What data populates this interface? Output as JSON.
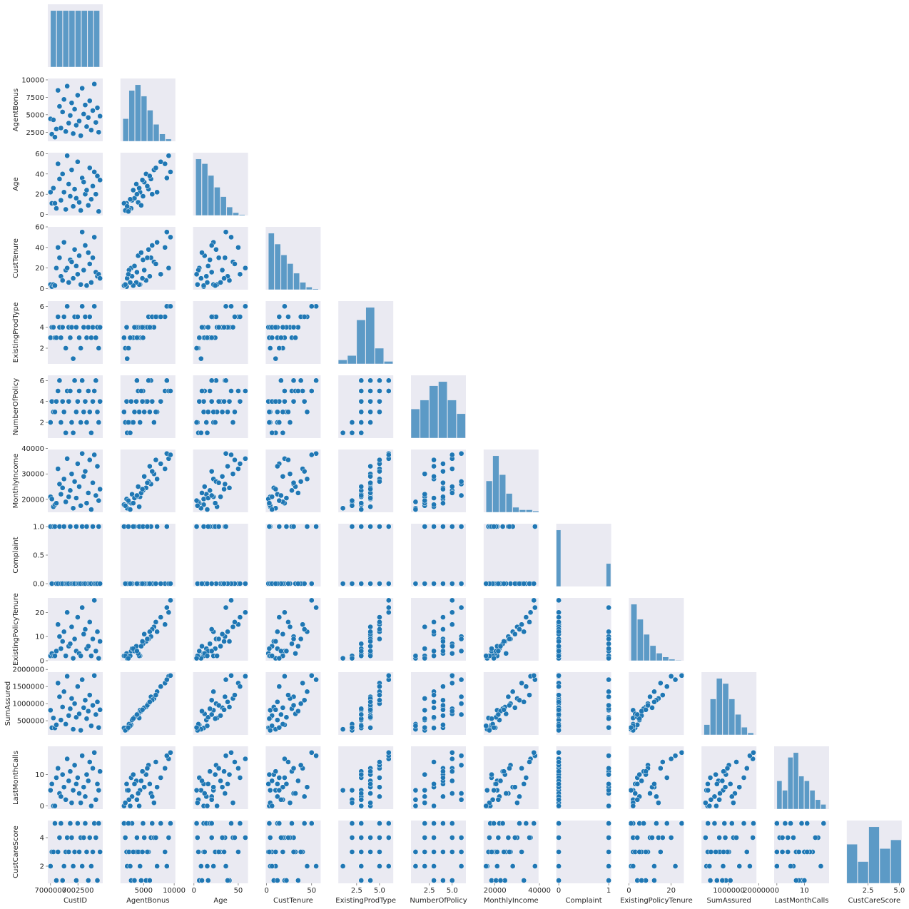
{
  "chart_data": {
    "type": "pairplot",
    "color": "#1f77b4",
    "background": "#eaeaf2",
    "variables": [
      {
        "name": "CustID",
        "lim": [
          6999750,
          7004770
        ],
        "xticks": [
          7000000,
          7002500
        ],
        "yticks": [],
        "bins": [
          7000000,
          7000565,
          7001130,
          7001695,
          7002260,
          7002825,
          7003390,
          7003955,
          7004520
        ],
        "counts": [
          565,
          565,
          565,
          565,
          565,
          565,
          565,
          565
        ]
      },
      {
        "name": "AgentBonus",
        "lim": [
          1200,
          10200
        ],
        "xticks": [
          5000,
          10000
        ],
        "yticks": [
          2500,
          5000,
          7500,
          10000
        ],
        "bins": [
          1600,
          2600,
          3600,
          4600,
          5600,
          6600,
          7600,
          8600,
          9600
        ],
        "counts": [
          400,
          900,
          1000,
          800,
          550,
          300,
          130,
          40
        ]
      },
      {
        "name": "Age",
        "lim": [
          -1,
          61
        ],
        "xticks": [
          0,
          50
        ],
        "yticks": [
          0,
          20,
          40,
          60
        ],
        "bins": [
          2,
          9,
          16,
          23,
          30,
          37,
          44,
          51,
          58
        ],
        "counts": [
          1200,
          1100,
          850,
          600,
          400,
          180,
          60,
          20
        ]
      },
      {
        "name": "CustTenure",
        "lim": [
          -1,
          60
        ],
        "xticks": [
          0,
          50
        ],
        "yticks": [
          0,
          20,
          40,
          60
        ],
        "bins": [
          2,
          9,
          16,
          23,
          30,
          37,
          44,
          51,
          58
        ],
        "counts": [
          1300,
          1050,
          800,
          600,
          380,
          170,
          60,
          20
        ]
      },
      {
        "name": "ExistingProdType",
        "lim": [
          0.5,
          6.5
        ],
        "xticks": [
          2.5,
          {
            "value": 5,
            "label": "5.0"
          }
        ],
        "yticks": [
          2,
          4,
          6
        ],
        "bins": [
          0.5,
          1.5,
          2.5,
          3.5,
          4.5,
          5.5,
          6.5
        ],
        "counts": [
          190,
          400,
          2100,
          2700,
          750,
          120
        ]
      },
      {
        "name": "NumberOfPolicy",
        "lim": [
          0.5,
          6.5
        ],
        "xticks": [
          2.5,
          {
            "value": 5,
            "label": "5.0"
          }
        ],
        "yticks": [
          2,
          4,
          6
        ],
        "bins": [
          0.5,
          1.5,
          2.5,
          3.5,
          4.5,
          5.5,
          6.5
        ],
        "counts": [
          490,
          640,
          880,
          950,
          640,
          410
        ]
      },
      {
        "name": "MonthlyIncome",
        "lim": [
          14900,
          39600
        ],
        "xticks": [
          20000,
          40000
        ],
        "yticks": [
          20000,
          30000,
          40000
        ],
        "bins": [
          16000,
          19000,
          22000,
          25000,
          28000,
          31000,
          34000,
          37000,
          40000
        ],
        "counts": [
          500,
          900,
          600,
          300,
          80,
          40,
          40,
          20
        ]
      },
      {
        "name": "Complaint",
        "lim": [
          -0.05,
          1.05
        ],
        "xticks": [
          0,
          1
        ],
        "yticks": [
          {
            "value": 0,
            "label": "0.0"
          },
          {
            "value": 0.5,
            "label": "0.5"
          },
          {
            "value": 1,
            "label": "1.0"
          }
        ],
        "bins": [
          -0.05,
          0.05,
          0.95,
          1.05
        ],
        "counts": [
          3200,
          0,
          1300
        ]
      },
      {
        "name": "ExistingPolicyTenure",
        "lim": [
          0,
          26
        ],
        "xticks": [
          0,
          20
        ],
        "yticks": [
          0,
          10,
          20
        ],
        "bins": [
          1,
          4,
          7,
          10,
          13,
          16,
          19,
          22,
          25
        ],
        "counts": [
          1500,
          1100,
          700,
          400,
          200,
          100,
          40,
          15
        ]
      },
      {
        "name": "SumAssured",
        "lim": [
          85000,
          1921000
        ],
        "xticks": [
          1000000,
          2000000
        ],
        "yticks": [
          500000,
          1000000,
          1500000,
          2000000
        ],
        "bins": [
          168000,
          376000,
          585000,
          794000,
          1003000,
          1212000,
          1421000,
          1630000,
          1839000
        ],
        "counts": [
          200,
          700,
          1100,
          1000,
          700,
          400,
          150,
          40
        ]
      },
      {
        "name": "LastMonthCalls",
        "lim": [
          -1,
          19
        ],
        "xticks": [
          0,
          10
        ],
        "yticks": [
          0,
          10
        ],
        "bins": [
          0,
          2,
          4,
          6,
          8,
          10,
          12,
          14,
          16,
          18
        ],
        "counts": [
          600,
          400,
          1100,
          1200,
          700,
          600,
          400,
          200,
          100
        ]
      },
      {
        "name": "CustCareScore",
        "lim": [
          0.8,
          5.2
        ],
        "xticks": [
          2.5,
          {
            "value": 5,
            "label": "5.0"
          }
        ],
        "yticks": [
          2,
          4
        ],
        "bins": [
          0.8,
          1.68,
          2.56,
          3.44,
          4.32,
          5.2
        ],
        "counts": [
          900,
          500,
          1300,
          800,
          1000
        ]
      }
    ],
    "records": [
      [
        7000000,
        4409,
        22,
        4,
        3,
        2,
        20993,
        1,
        2,
        806761,
        5,
        2
      ],
      [
        7000120,
        2214,
        11,
        2,
        4,
        4,
        20130,
        0,
        3,
        294502,
        7,
        3
      ],
      [
        7000260,
        4273,
        26,
        4,
        4,
        3,
        17090,
        1,
        2,
        578976,
        0,
        3
      ],
      [
        7000400,
        1791,
        11,
        3,
        3,
        3,
        17909,
        1,
        2,
        287803,
        0,
        5
      ],
      [
        7000530,
        2955,
        6,
        20,
        3,
        4,
        18468,
        0,
        4,
        379226,
        9,
        1
      ],
      [
        7000680,
        8500,
        50,
        40,
        5,
        5,
        32000,
        0,
        15,
        1600000,
        12,
        3
      ],
      [
        7000820,
        6200,
        35,
        30,
        4,
        6,
        26000,
        1,
        10,
        1200000,
        4,
        4
      ],
      [
        7000950,
        3100,
        14,
        12,
        3,
        2,
        22000,
        0,
        5,
        520000,
        3,
        5
      ],
      [
        7001100,
        5400,
        40,
        8,
        4,
        4,
        24500,
        0,
        8,
        900000,
        10,
        1
      ],
      [
        7001230,
        7200,
        22,
        45,
        5,
        3,
        28000,
        1,
        12,
        1350000,
        6,
        2
      ],
      [
        7001390,
        2600,
        5,
        18,
        2,
        1,
        19000,
        0,
        2,
        400000,
        2,
        3
      ],
      [
        7001520,
        9100,
        58,
        20,
        6,
        5,
        36000,
        0,
        20,
        1800000,
        15,
        4
      ],
      [
        7001660,
        3800,
        30,
        6,
        4,
        4,
        21000,
        0,
        6,
        650000,
        8,
        3
      ],
      [
        7001800,
        4900,
        18,
        28,
        3,
        5,
        23500,
        1,
        7,
        850000,
        11,
        5
      ],
      [
        7001930,
        6700,
        44,
        26,
        4,
        2,
        30000,
        0,
        14,
        1150000,
        1,
        4
      ],
      [
        7002070,
        2300,
        8,
        10,
        1,
        1,
        16500,
        0,
        1,
        250000,
        5,
        2
      ],
      [
        7002200,
        5800,
        25,
        38,
        5,
        6,
        27000,
        0,
        9,
        1000000,
        13,
        3
      ],
      [
        7002350,
        3500,
        16,
        22,
        4,
        3,
        20500,
        1,
        4,
        600000,
        7,
        1
      ],
      [
        7002480,
        7800,
        52,
        14,
        5,
        4,
        34000,
        0,
        18,
        1500000,
        9,
        5
      ],
      [
        7002620,
        4100,
        12,
        32,
        3,
        5,
        25000,
        0,
        3,
        700000,
        4,
        3
      ],
      [
        7002760,
        2000,
        4,
        4,
        2,
        2,
        17500,
        0,
        2,
        220000,
        1,
        4
      ],
      [
        7002890,
        8800,
        36,
        55,
        6,
        6,
        38000,
        1,
        22,
        1700000,
        16,
        2
      ],
      [
        7003030,
        5100,
        32,
        18,
        4,
        3,
        29000,
        0,
        11,
        880000,
        6,
        4
      ],
      [
        7003170,
        6400,
        20,
        42,
        5,
        4,
        31000,
        0,
        13,
        1100000,
        3,
        5
      ],
      [
        7003300,
        3300,
        24,
        3,
        3,
        2,
        18500,
        1,
        5,
        560000,
        10,
        3
      ],
      [
        7003450,
        4600,
        9,
        35,
        4,
        5,
        22500,
        0,
        6,
        780000,
        8,
        1
      ],
      [
        7003580,
        7000,
        46,
        24,
        5,
        3,
        35500,
        0,
        16,
        1250000,
        14,
        4
      ],
      [
        7003720,
        2800,
        15,
        6,
        3,
        1,
        16000,
        0,
        2,
        350000,
        0,
        2
      ],
      [
        7003860,
        5600,
        28,
        30,
        4,
        4,
        26500,
        1,
        9,
        950000,
        12,
        3
      ],
      [
        7004000,
        9400,
        42,
        50,
        6,
        5,
        37500,
        0,
        25,
        1820000,
        17,
        5
      ],
      [
        7004140,
        3900,
        20,
        16,
        3,
        6,
        21500,
        0,
        4,
        680000,
        2,
        4
      ],
      [
        7004280,
        6000,
        38,
        12,
        4,
        3,
        33000,
        0,
        12,
        1050000,
        7,
        1
      ],
      [
        7004400,
        2500,
        3,
        14,
        2,
        2,
        19500,
        1,
        1,
        300000,
        5,
        5
      ],
      [
        7004520,
        4800,
        34,
        10,
        4,
        4,
        24000,
        0,
        8,
        820000,
        11,
        3
      ]
    ]
  }
}
